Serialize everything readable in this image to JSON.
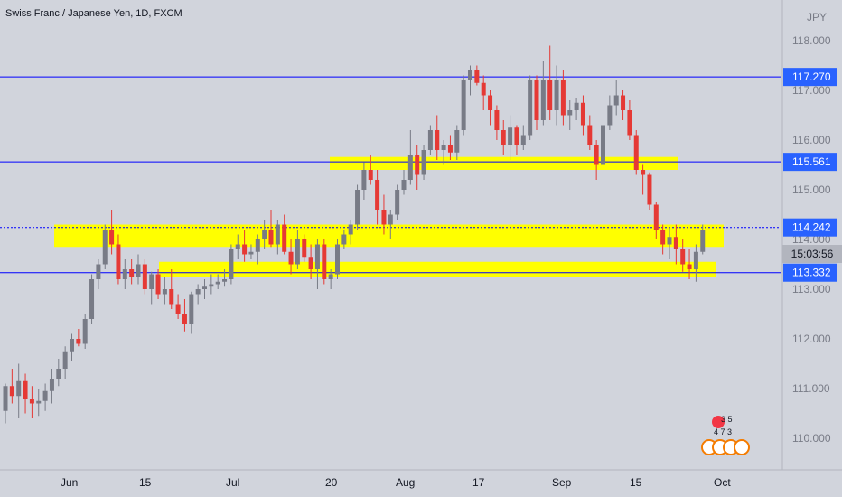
{
  "header": {
    "title": "Swiss Franc / Japanese Yen, 1D, FXCM"
  },
  "axis": {
    "currency_label": "JPY",
    "y_ticks": [
      "118.000",
      "117.000",
      "116.000",
      "115.000",
      "114.000",
      "113.000",
      "112.000",
      "111.000",
      "110.000"
    ],
    "x_ticks": [
      "Jun",
      "15",
      "Jul",
      "20",
      "Aug",
      "17",
      "Sep",
      "15",
      "Oct"
    ]
  },
  "price_lines": [
    {
      "label": "117.270",
      "value": 117.27
    },
    {
      "label": "115.561",
      "value": 115.561
    },
    {
      "label": "114.242",
      "value": 114.242
    },
    {
      "label": "113.332",
      "value": 113.332
    }
  ],
  "countdown": "15:03:56",
  "badges": {
    "top_count": "3 5",
    "bottom_count": "4 7 3"
  },
  "colors": {
    "up": "#787b86",
    "down": "#e53935",
    "zone": "#ffff00",
    "line": "#0000ff",
    "label_bg": "#2962ff",
    "background": "#d1d4dc"
  },
  "chart_data": {
    "type": "candlestick",
    "title": "Swiss Franc / Japanese Yen, 1D, FXCM",
    "ylabel": "JPY",
    "ylim": [
      109.4,
      118.3
    ],
    "zones": [
      {
        "from": 115.4,
        "to": 115.66
      },
      {
        "from": 113.85,
        "to": 114.3
      },
      {
        "from": 113.25,
        "to": 113.55
      }
    ],
    "candles": [
      [
        110.55,
        111.1,
        110.3,
        111.05
      ],
      [
        111.05,
        111.4,
        110.7,
        110.85
      ],
      [
        110.85,
        111.5,
        110.4,
        111.15
      ],
      [
        111.15,
        111.3,
        110.5,
        110.8
      ],
      [
        110.8,
        111.05,
        110.4,
        110.7
      ],
      [
        110.7,
        111.0,
        110.45,
        110.75
      ],
      [
        110.75,
        111.1,
        110.55,
        110.95
      ],
      [
        110.95,
        111.4,
        110.7,
        111.2
      ],
      [
        111.2,
        111.6,
        111.05,
        111.4
      ],
      [
        111.4,
        111.85,
        111.2,
        111.75
      ],
      [
        111.75,
        112.1,
        111.55,
        112.0
      ],
      [
        112.0,
        112.2,
        111.85,
        111.9
      ],
      [
        111.9,
        112.5,
        111.8,
        112.4
      ],
      [
        112.4,
        113.3,
        112.3,
        113.2
      ],
      [
        113.2,
        113.6,
        113.0,
        113.5
      ],
      [
        113.5,
        114.3,
        113.4,
        114.2
      ],
      [
        114.2,
        114.6,
        113.7,
        113.9
      ],
      [
        113.9,
        114.1,
        113.1,
        113.2
      ],
      [
        113.2,
        113.6,
        113.0,
        113.4
      ],
      [
        113.4,
        113.6,
        113.1,
        113.25
      ],
      [
        113.25,
        113.7,
        113.1,
        113.5
      ],
      [
        113.5,
        113.6,
        112.9,
        113.0
      ],
      [
        113.0,
        113.35,
        112.7,
        113.3
      ],
      [
        113.3,
        113.4,
        112.8,
        112.9
      ],
      [
        112.9,
        113.25,
        112.7,
        113.0
      ],
      [
        113.0,
        113.4,
        112.6,
        112.7
      ],
      [
        112.7,
        112.9,
        112.4,
        112.5
      ],
      [
        112.5,
        112.8,
        112.15,
        112.3
      ],
      [
        112.3,
        112.95,
        112.1,
        112.9
      ],
      [
        112.9,
        113.1,
        112.7,
        113.0
      ],
      [
        113.0,
        113.2,
        112.8,
        113.05
      ],
      [
        113.05,
        113.3,
        112.9,
        113.1
      ],
      [
        113.1,
        113.3,
        113.0,
        113.15
      ],
      [
        113.15,
        113.4,
        113.05,
        113.2
      ],
      [
        113.2,
        113.9,
        113.1,
        113.8
      ],
      [
        113.8,
        114.1,
        113.6,
        113.9
      ],
      [
        113.9,
        114.2,
        113.55,
        113.7
      ],
      [
        113.7,
        113.9,
        113.6,
        113.75
      ],
      [
        113.75,
        114.1,
        113.5,
        114.0
      ],
      [
        114.0,
        114.4,
        113.8,
        114.2
      ],
      [
        114.2,
        114.6,
        113.85,
        113.9
      ],
      [
        113.9,
        114.4,
        113.7,
        114.3
      ],
      [
        114.3,
        114.5,
        113.7,
        113.75
      ],
      [
        113.75,
        114.0,
        113.3,
        113.5
      ],
      [
        113.5,
        114.2,
        113.4,
        114.0
      ],
      [
        114.0,
        114.1,
        113.55,
        113.65
      ],
      [
        113.65,
        113.9,
        113.2,
        113.4
      ],
      [
        113.4,
        114.0,
        113.0,
        113.9
      ],
      [
        113.9,
        114.0,
        113.1,
        113.2
      ],
      [
        113.2,
        113.4,
        113.0,
        113.3
      ],
      [
        113.3,
        114.0,
        113.2,
        113.9
      ],
      [
        113.9,
        114.2,
        113.8,
        114.1
      ],
      [
        114.1,
        114.4,
        113.9,
        114.3
      ],
      [
        114.3,
        115.1,
        114.2,
        115.0
      ],
      [
        115.0,
        115.55,
        114.8,
        115.4
      ],
      [
        115.4,
        115.7,
        115.1,
        115.2
      ],
      [
        115.2,
        115.4,
        114.3,
        114.6
      ],
      [
        114.6,
        114.9,
        114.1,
        114.3
      ],
      [
        114.3,
        114.6,
        114.0,
        114.5
      ],
      [
        114.5,
        115.1,
        114.4,
        115.0
      ],
      [
        115.0,
        115.4,
        114.9,
        115.2
      ],
      [
        115.2,
        116.2,
        115.1,
        115.7
      ],
      [
        115.7,
        115.9,
        115.0,
        115.3
      ],
      [
        115.3,
        115.9,
        115.2,
        115.8
      ],
      [
        115.8,
        116.3,
        115.7,
        116.2
      ],
      [
        116.2,
        116.5,
        115.6,
        115.8
      ],
      [
        115.8,
        116.0,
        115.5,
        115.9
      ],
      [
        115.9,
        116.1,
        115.6,
        115.75
      ],
      [
        115.75,
        116.3,
        115.6,
        116.2
      ],
      [
        116.2,
        117.3,
        116.1,
        117.2
      ],
      [
        117.2,
        117.5,
        116.9,
        117.4
      ],
      [
        117.4,
        117.5,
        117.1,
        117.15
      ],
      [
        117.15,
        117.3,
        116.6,
        116.9
      ],
      [
        116.9,
        117.0,
        116.3,
        116.6
      ],
      [
        116.6,
        116.7,
        116.0,
        116.2
      ],
      [
        116.2,
        116.4,
        115.7,
        115.9
      ],
      [
        115.9,
        116.5,
        115.6,
        116.25
      ],
      [
        116.25,
        116.3,
        115.7,
        115.9
      ],
      [
        115.9,
        116.3,
        115.8,
        116.1
      ],
      [
        116.1,
        117.3,
        116.0,
        117.2
      ],
      [
        117.2,
        117.3,
        116.2,
        116.4
      ],
      [
        116.4,
        117.6,
        116.3,
        117.2
      ],
      [
        117.2,
        117.9,
        116.4,
        116.6
      ],
      [
        116.6,
        117.5,
        116.3,
        117.2
      ],
      [
        117.2,
        117.4,
        116.3,
        116.5
      ],
      [
        116.5,
        116.8,
        116.2,
        116.6
      ],
      [
        116.6,
        116.85,
        116.4,
        116.75
      ],
      [
        116.75,
        116.9,
        116.1,
        116.3
      ],
      [
        116.3,
        116.5,
        115.8,
        115.9
      ],
      [
        115.9,
        116.0,
        115.2,
        115.5
      ],
      [
        115.5,
        116.4,
        115.1,
        116.3
      ],
      [
        116.3,
        116.9,
        116.2,
        116.7
      ],
      [
        116.7,
        117.2,
        116.5,
        116.9
      ],
      [
        116.9,
        117.0,
        116.4,
        116.6
      ],
      [
        116.6,
        116.8,
        116.0,
        116.1
      ],
      [
        116.1,
        116.2,
        115.3,
        115.4
      ],
      [
        115.4,
        115.5,
        114.9,
        115.3
      ],
      [
        115.3,
        115.35,
        114.6,
        114.7
      ],
      [
        114.7,
        114.75,
        114.0,
        114.2
      ],
      [
        114.2,
        114.3,
        113.7,
        113.9
      ],
      [
        113.9,
        114.25,
        113.6,
        114.05
      ],
      [
        114.05,
        114.3,
        113.5,
        113.8
      ],
      [
        113.8,
        114.0,
        113.35,
        113.5
      ],
      [
        113.5,
        113.8,
        113.2,
        113.4
      ],
      [
        113.4,
        113.9,
        113.15,
        113.75
      ],
      [
        113.75,
        114.3,
        113.7,
        114.2
      ]
    ]
  }
}
